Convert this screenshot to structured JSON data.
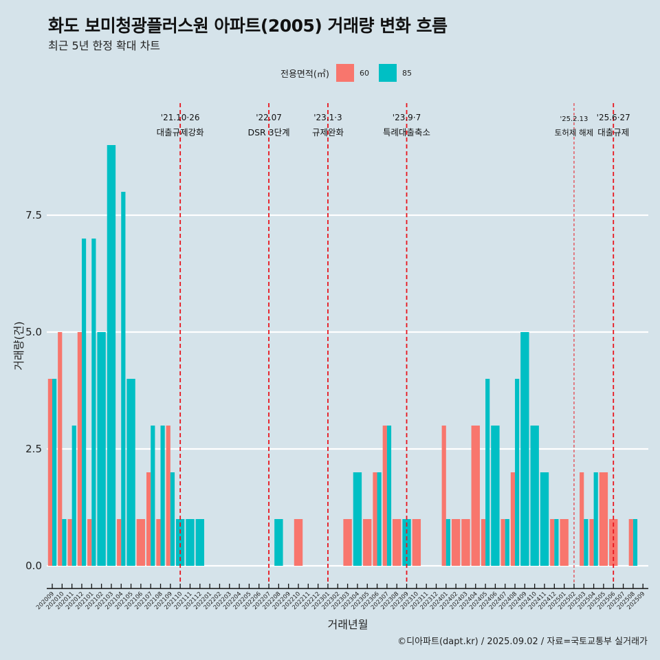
{
  "title": "화도 보미청광플러스원 아파트(2005) 거래량 변화 흐름",
  "subtitle": "최근 5년 한정 확대 차트",
  "caption": "©디아파트(dapt.kr) / 2025.09.02 / 자료=국토교통부 실거래가",
  "colors": {
    "60": "#f8766d",
    "85": "#00bfc4",
    "background": "#d5e3ea",
    "vline": "#e8141c"
  },
  "chart_data": {
    "type": "bar",
    "title": "화도 보미청광플러스원 아파트(2005) 거래량 변화 흐름",
    "xlabel": "거래년월",
    "ylabel": "거래량(건)",
    "ylim": [
      -0.9,
      9.6
    ],
    "yticks": [
      0,
      2.5,
      5,
      7.5
    ],
    "ytick_labels": [
      "0.0",
      "2.5",
      "5.0",
      "7.5"
    ],
    "grid": true,
    "legend": {
      "title": "전용면적(㎡)",
      "placement": "top",
      "entries": [
        "60",
        "85"
      ]
    },
    "categories": [
      "202009",
      "202010",
      "202011",
      "202012",
      "202101",
      "202102",
      "202103",
      "202104",
      "202105",
      "202106",
      "202107",
      "202108",
      "202109",
      "202110",
      "202111",
      "202112",
      "202201",
      "202202",
      "202203",
      "202204",
      "202205",
      "202206",
      "202207",
      "202208",
      "202209",
      "202210",
      "202211",
      "202212",
      "202301",
      "202302",
      "202303",
      "202304",
      "202305",
      "202306",
      "202307",
      "202308",
      "202309",
      "202310",
      "202311",
      "202312",
      "202401",
      "202402",
      "202403",
      "202404",
      "202405",
      "202406",
      "202407",
      "202408",
      "202409",
      "202410",
      "202411",
      "202412",
      "202501",
      "202502",
      "202503",
      "202504",
      "202505",
      "202506",
      "202507",
      "202508",
      "202509"
    ],
    "series": [
      {
        "name": "60",
        "values": [
          4,
          5,
          1,
          5,
          1,
          0,
          0,
          1,
          0,
          1,
          2,
          1,
          3,
          0,
          0,
          0,
          0,
          0,
          0,
          0,
          0,
          0,
          0,
          0,
          0,
          1,
          0,
          0,
          0,
          0,
          1,
          0,
          1,
          2,
          3,
          1,
          0,
          1,
          0,
          0,
          3,
          1,
          1,
          3,
          1,
          0,
          1,
          2,
          0,
          0,
          0,
          1,
          1,
          0,
          2,
          1,
          2,
          1,
          0,
          1,
          0
        ]
      },
      {
        "name": "85",
        "values": [
          4,
          1,
          3,
          7,
          7,
          5,
          9,
          8,
          4,
          0,
          3,
          3,
          2,
          1,
          1,
          1,
          0,
          0,
          0,
          0,
          0,
          0,
          0,
          1,
          0,
          0,
          0,
          0,
          0,
          0,
          0,
          2,
          0,
          2,
          3,
          0,
          1,
          0,
          0,
          0,
          1,
          0,
          0,
          0,
          4,
          3,
          1,
          4,
          5,
          3,
          2,
          1,
          0,
          0,
          1,
          2,
          0,
          0,
          0,
          1,
          0
        ]
      }
    ],
    "annotations": [
      {
        "month": "202110",
        "date": "'21.10·26",
        "label": "대출규제강화",
        "style": "thick"
      },
      {
        "month": "202207",
        "date": "'22.07",
        "label": "DSR 3단계",
        "style": "thick"
      },
      {
        "month": "202301",
        "date": "'23.1·3",
        "label": "규제완화",
        "style": "thick"
      },
      {
        "month": "202309",
        "date": "'23.9·7",
        "label": "특례대출축소",
        "style": "thick"
      },
      {
        "month": "202502",
        "date": "'25.2.13",
        "label": "토허제 해제",
        "style": "thin"
      },
      {
        "month": "202506",
        "date": "'25.6·27",
        "label": "대출규제",
        "style": "thick"
      }
    ]
  }
}
